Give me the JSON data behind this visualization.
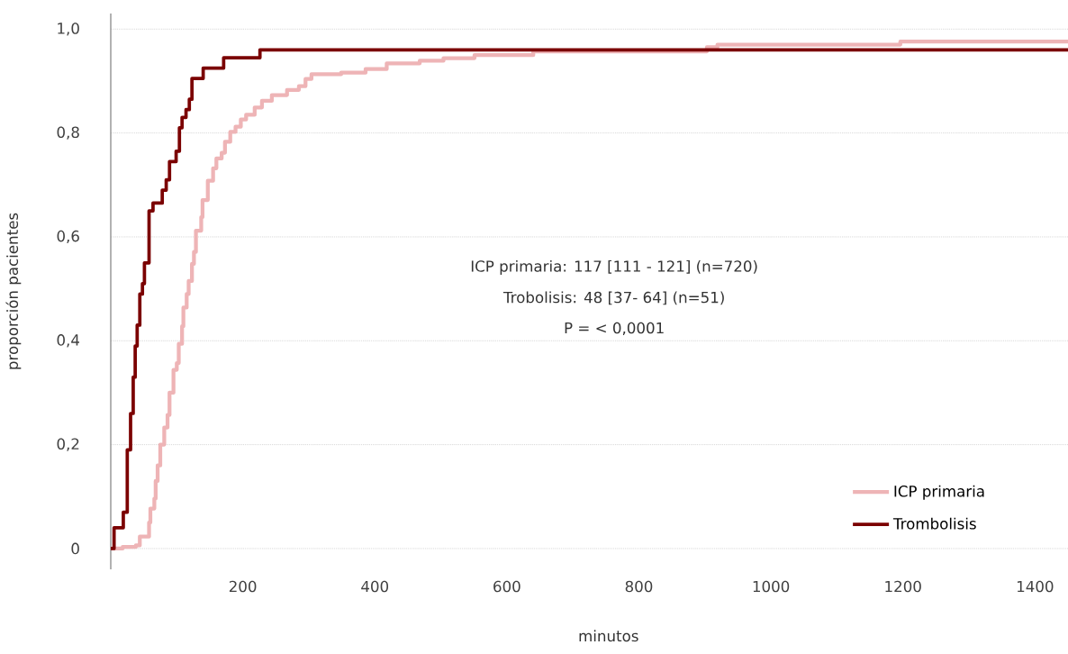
{
  "chart_data": {
    "type": "step",
    "xlabel": "minutos",
    "ylabel": "proporción pacientes",
    "xlim": [
      0,
      1450
    ],
    "ylim": [
      -0.04,
      1.03
    ],
    "xticks": [
      200,
      400,
      600,
      800,
      1000,
      1200,
      1400
    ],
    "yticks": [
      0,
      {
        "value": 0.2,
        "label": "0,2"
      },
      {
        "value": 0.4,
        "label": "0,4"
      },
      {
        "value": 0.6,
        "label": "0,6"
      },
      {
        "value": 0.8,
        "label": "0,8"
      },
      {
        "value": 1.0,
        "label": "1,0"
      }
    ],
    "grid": "y",
    "legend": "bottom right",
    "annotations": [
      "ICP primaria: 117 [111 - 121] (n=720)",
      "Trobolisis: 48 [37- 64] (n=51)",
      "P = < 0,0001"
    ],
    "series": [
      {
        "name": "ICP primaria",
        "color": "#eeb4b6",
        "x": [
          0,
          18,
          38,
          44,
          58,
          60,
          66,
          68,
          71,
          75,
          81,
          86,
          89,
          95,
          100,
          103,
          108,
          110,
          115,
          118,
          123,
          126,
          129,
          137,
          139,
          147,
          155,
          160,
          168,
          173,
          181,
          189,
          197,
          205,
          218,
          229,
          244,
          267,
          285,
          295,
          304,
          349,
          386,
          418,
          468,
          504,
          551,
          640,
          903,
          919,
          1196,
          1450
        ],
        "values": [
          0,
          0.003,
          0.006,
          0.023,
          0.05,
          0.077,
          0.096,
          0.13,
          0.16,
          0.2,
          0.233,
          0.257,
          0.3,
          0.344,
          0.357,
          0.394,
          0.428,
          0.464,
          0.49,
          0.515,
          0.548,
          0.571,
          0.612,
          0.638,
          0.671,
          0.708,
          0.732,
          0.751,
          0.762,
          0.783,
          0.802,
          0.812,
          0.826,
          0.835,
          0.849,
          0.862,
          0.873,
          0.883,
          0.89,
          0.904,
          0.913,
          0.916,
          0.923,
          0.934,
          0.939,
          0.944,
          0.95,
          0.957,
          0.965,
          0.97,
          0.976,
          0.976
        ]
      },
      {
        "name": "Trombolisis",
        "color": "#7b0000",
        "x": [
          0,
          5,
          19,
          25,
          30,
          34,
          37,
          40,
          44,
          48,
          51,
          58,
          64,
          78,
          84,
          89,
          99,
          104,
          108,
          114,
          119,
          123,
          140,
          171,
          226,
          1450
        ],
        "values": [
          0,
          0.04,
          0.07,
          0.19,
          0.26,
          0.33,
          0.39,
          0.43,
          0.49,
          0.51,
          0.55,
          0.65,
          0.665,
          0.69,
          0.71,
          0.745,
          0.765,
          0.81,
          0.83,
          0.845,
          0.865,
          0.905,
          0.925,
          0.945,
          0.96,
          0.96
        ]
      }
    ]
  }
}
